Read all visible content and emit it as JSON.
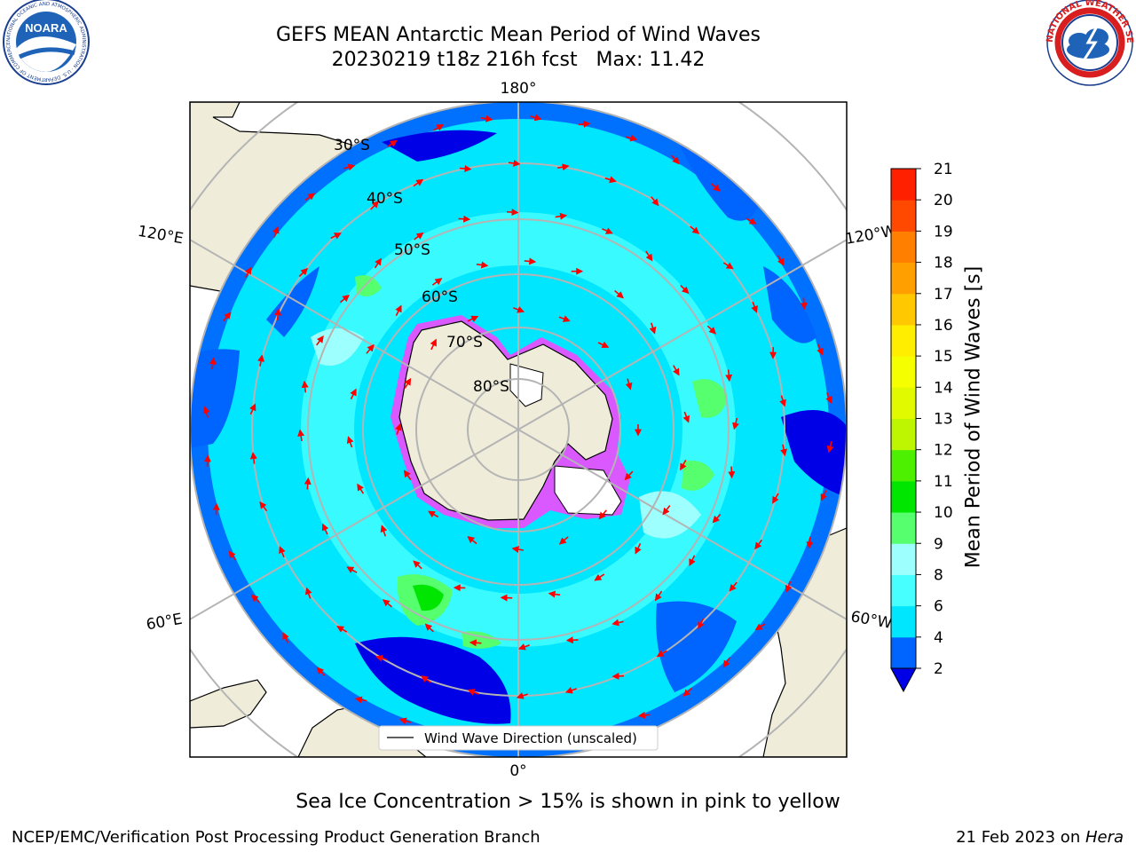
{
  "header": {
    "title_line1": "GEFS MEAN Antarctic Mean Period of Wind Waves",
    "title_line2": "20230219 t18z 216h fcst   Max: 11.42"
  },
  "logos": {
    "left": {
      "name": "NOARA",
      "ring_text": "NATIONAL OCEANIC AND ATMOSPHERIC ADMINISTRATION · U.S. DEPARTMENT OF COMMERCE"
    },
    "right": {
      "ring_text": "NATIONAL WEATHER SERVICE"
    }
  },
  "map": {
    "projection": "south-polar-stereographic",
    "meridian_labels": {
      "top": "180°",
      "bottom": "0°",
      "upper_left": "120°E",
      "upper_right": "120°W",
      "lower_left": "60°E",
      "lower_right": "60°W"
    },
    "parallel_labels": [
      "30°S",
      "40°S",
      "50°S",
      "60°S",
      "70°S",
      "80°S"
    ],
    "legend": "Wind Wave Direction (unscaled)",
    "colors": {
      "land": "#efedda",
      "ice": "#ffffff",
      "ice_edge": "#ff40ff",
      "grid": "#b4b4b4",
      "arrow": "#ff0000"
    }
  },
  "colorbar": {
    "label": "Mean Period of Wind Waves [s]",
    "ticks": [
      "2",
      "4",
      "6",
      "8",
      "9",
      "10",
      "11",
      "12",
      "13",
      "14",
      "15",
      "16",
      "17",
      "18",
      "19",
      "20",
      "21"
    ],
    "levels": [
      2,
      4,
      6,
      8,
      9,
      10,
      11,
      12,
      13,
      14,
      15,
      16,
      17,
      18,
      19,
      20,
      21
    ],
    "colors": [
      "#0064ff",
      "#00e6ff",
      "#47ffff",
      "#9effff",
      "#55ff6e",
      "#00e600",
      "#4cf000",
      "#bef500",
      "#e1fa00",
      "#f5ff00",
      "#ffee00",
      "#ffc800",
      "#ffa000",
      "#ff8000",
      "#ff4800",
      "#ff2000",
      "#ff0000"
    ],
    "under_color": "#0000e6"
  },
  "caption": "Sea Ice Concentration > 15% is shown in pink to yellow",
  "footer": {
    "left": "NCEP/EMC/Verification Post Processing Product Generation Branch",
    "right_date": "21 Feb 2023 on ",
    "right_host": "Hera"
  }
}
